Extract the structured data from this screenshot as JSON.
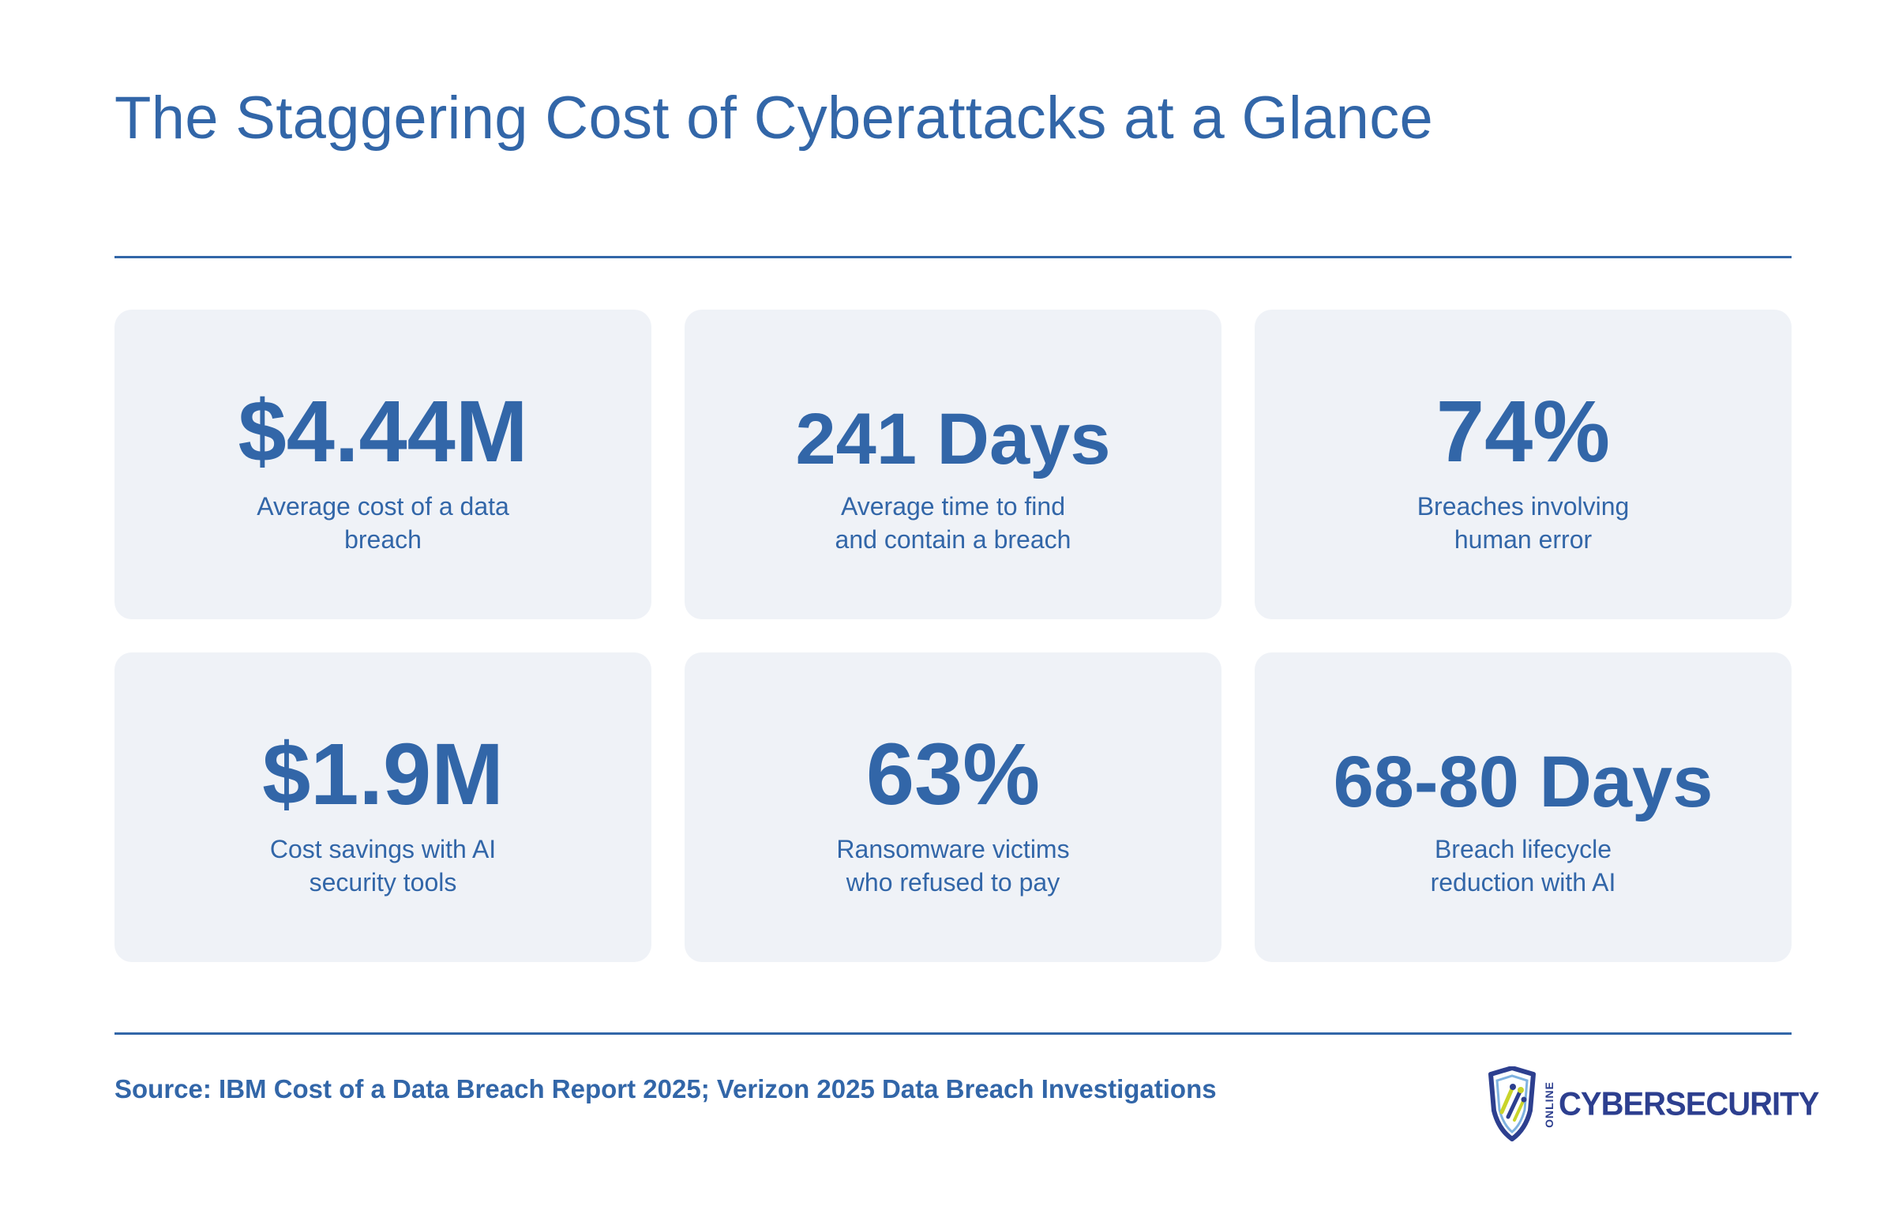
{
  "title": "The Staggering Cost of Cyberattacks at a Glance",
  "stats": [
    {
      "value": "$4.44M",
      "label": "Average cost of a data breach"
    },
    {
      "value": "241 Days",
      "label": "Average time to find and contain a breach"
    },
    {
      "value": "74%",
      "label": "Breaches involving human error"
    },
    {
      "value": "$1.9M",
      "label": "Cost savings with AI security tools"
    },
    {
      "value": "63%",
      "label": "Ransomware victims who refused to pay"
    },
    {
      "value": "68-80 Days",
      "label": "Breach lifecycle reduction with AI"
    }
  ],
  "source": "Source: IBM Cost of a Data Breach Report 2025; Verizon 2025 Data Breach Investigations",
  "logo": {
    "small_text": "ONLINE",
    "text": "CYBERSECURITY",
    "icon": "shield-icon",
    "colors": {
      "primary": "#2d3f8f",
      "accent": "#c9d42a",
      "light": "#7fb2e0"
    }
  },
  "colors": {
    "text": "#3266a8",
    "card_bg": "#eff2f7"
  }
}
